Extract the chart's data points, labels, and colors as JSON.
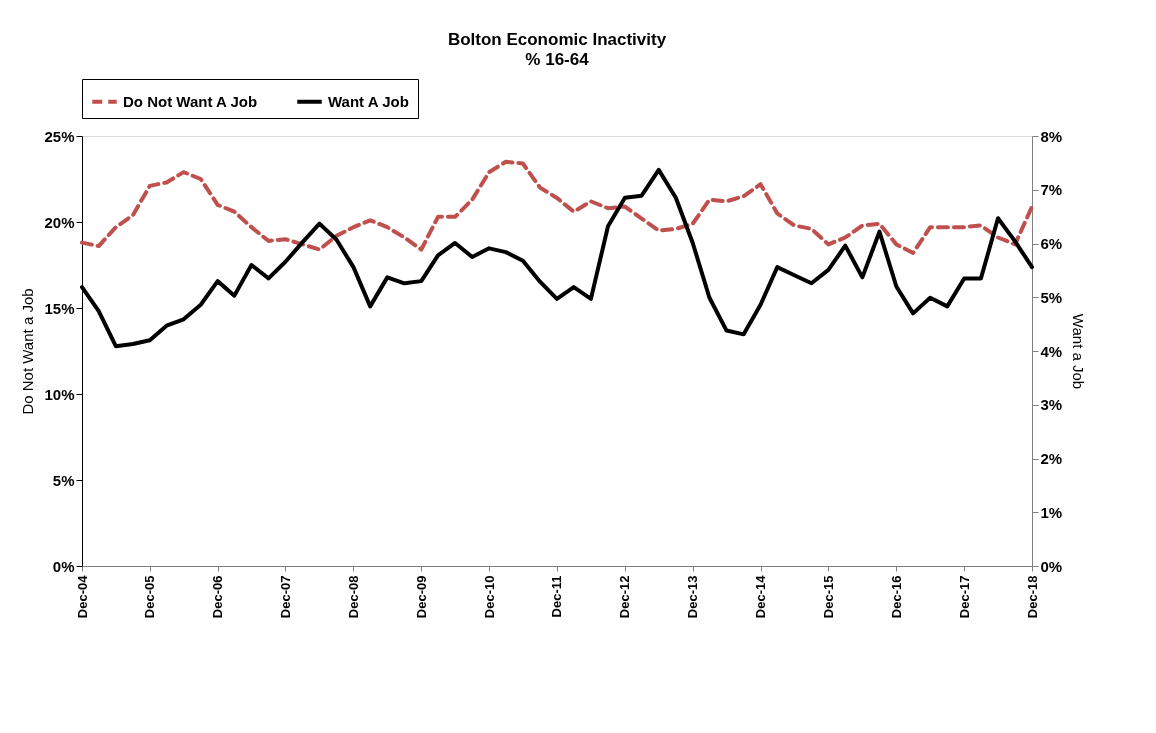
{
  "chart_data": {
    "type": "line",
    "title": "Bolton Economic Inactivity",
    "subtitle": "% 16-64",
    "ylabel": "Do Not Want a Job",
    "y2label": "Want a Job",
    "x": [
      "2004-12",
      "2005-03",
      "2005-06",
      "2005-09",
      "2005-12",
      "2006-03",
      "2006-06",
      "2006-09",
      "2006-12",
      "2007-03",
      "2007-06",
      "2007-09",
      "2007-12",
      "2008-03",
      "2008-06",
      "2008-09",
      "2008-12",
      "2009-03",
      "2009-06",
      "2009-09",
      "2009-12",
      "2010-03",
      "2010-06",
      "2010-09",
      "2010-12",
      "2011-03",
      "2011-06",
      "2011-09",
      "2011-12",
      "2012-03",
      "2012-06",
      "2012-09",
      "2012-12",
      "2013-03",
      "2013-06",
      "2013-09",
      "2013-12",
      "2014-03",
      "2014-06",
      "2014-09",
      "2014-12",
      "2015-03",
      "2015-06",
      "2015-09",
      "2015-12",
      "2016-03",
      "2016-06",
      "2016-09",
      "2016-12",
      "2017-03",
      "2017-06",
      "2017-09",
      "2017-12",
      "2018-03",
      "2018-06",
      "2018-09",
      "2018-12"
    ],
    "series": [
      {
        "name": "Do Not Want A Job",
        "color": "#c0504d",
        "line_style": "dashed",
        "values": [
          18.8,
          18.6,
          19.7,
          20.4,
          22.1,
          22.3,
          22.9,
          22.5,
          21.0,
          20.6,
          19.7,
          18.9,
          19.0,
          18.7,
          18.4,
          19.2,
          19.7,
          20.1,
          19.7,
          19.1,
          18.4,
          20.3,
          20.3,
          21.3,
          22.9,
          23.5,
          23.4,
          22.0,
          21.4,
          20.6,
          21.2,
          20.8,
          20.9,
          20.2,
          19.5,
          19.6,
          19.9,
          21.3,
          21.2,
          21.5,
          22.2,
          20.5,
          19.8,
          19.6,
          18.7,
          19.1,
          19.8,
          19.9,
          18.7,
          18.2,
          19.7,
          19.7,
          19.7,
          19.8,
          19.1,
          18.7,
          20.9
        ]
      },
      {
        "name": "Want A Job",
        "color": "#000000",
        "line_style": "solid",
        "axis": "y2",
        "values": [
          5.19,
          4.74,
          4.09,
          4.13,
          4.2,
          4.47,
          4.59,
          4.86,
          5.3,
          5.03,
          5.6,
          5.35,
          5.66,
          6.02,
          6.37,
          6.07,
          5.56,
          4.83,
          5.37,
          5.26,
          5.3,
          5.78,
          6.01,
          5.75,
          5.91,
          5.84,
          5.68,
          5.29,
          4.97,
          5.19,
          4.97,
          6.32,
          6.85,
          6.89,
          7.37,
          6.85,
          6.01,
          4.99,
          4.38,
          4.31,
          4.86,
          5.56,
          5.41,
          5.26,
          5.51,
          5.96,
          5.37,
          6.22,
          5.2,
          4.7,
          4.99,
          4.83,
          5.35,
          5.35,
          6.47,
          6.04,
          5.56
        ]
      }
    ],
    "xlim": [
      "2004-12",
      "2018-12"
    ],
    "xticks": [
      {
        "value": "2004-12",
        "label": "Dec-04"
      },
      {
        "value": "2005-12",
        "label": "Dec-05"
      },
      {
        "value": "2006-12",
        "label": "Dec-06"
      },
      {
        "value": "2007-12",
        "label": "Dec-07"
      },
      {
        "value": "2008-12",
        "label": "Dec-08"
      },
      {
        "value": "2009-12",
        "label": "Dec-09"
      },
      {
        "value": "2010-12",
        "label": "Dec-10"
      },
      {
        "value": "2011-12",
        "label": "Dec-11"
      },
      {
        "value": "2012-12",
        "label": "Dec-12"
      },
      {
        "value": "2013-12",
        "label": "Dec-13"
      },
      {
        "value": "2014-12",
        "label": "Dec-14"
      },
      {
        "value": "2015-12",
        "label": "Dec-15"
      },
      {
        "value": "2016-12",
        "label": "Dec-16"
      },
      {
        "value": "2017-12",
        "label": "Dec-17"
      },
      {
        "value": "2018-12",
        "label": "Dec-18"
      }
    ],
    "ylim": [
      0,
      25
    ],
    "yticks": [
      {
        "value": 0,
        "label": "0%"
      },
      {
        "value": 5,
        "label": "5%"
      },
      {
        "value": 10,
        "label": "10%"
      },
      {
        "value": 15,
        "label": "15%"
      },
      {
        "value": 20,
        "label": "20%"
      },
      {
        "value": 25,
        "label": "25%"
      }
    ],
    "y2lim": [
      0,
      8
    ],
    "y2ticks": [
      {
        "value": 0,
        "label": "0%"
      },
      {
        "value": 1,
        "label": "1%"
      },
      {
        "value": 2,
        "label": "2%"
      },
      {
        "value": 3,
        "label": "3%"
      },
      {
        "value": 4,
        "label": "4%"
      },
      {
        "value": 5,
        "label": "5%"
      },
      {
        "value": 6,
        "label": "6%"
      },
      {
        "value": 7,
        "label": "7%"
      },
      {
        "value": 8,
        "label": "8%"
      }
    ],
    "grid": false,
    "legend": "top",
    "marker": "none"
  }
}
